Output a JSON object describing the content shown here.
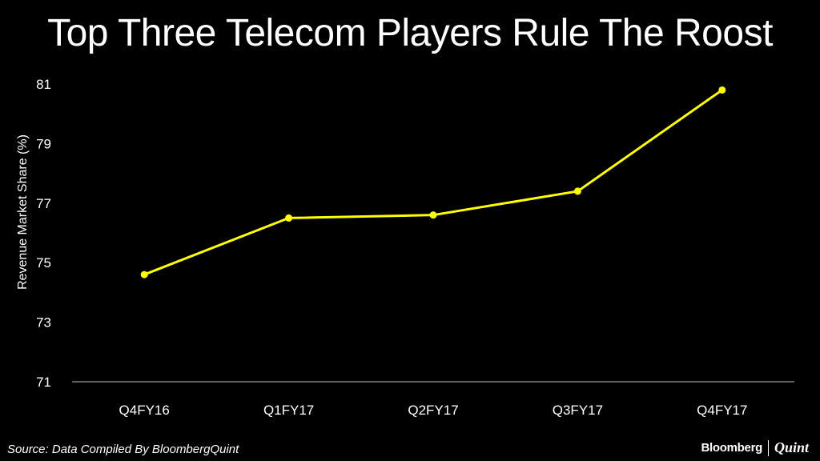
{
  "title": "Top Three Telecom Players Rule The Roost",
  "source": "Source: Data Compiled By BloombergQuint",
  "brand": {
    "primary": "Bloomberg",
    "secondary": "Quint"
  },
  "colors": {
    "background": "#000000",
    "line": "#ffff00",
    "text": "#ffffff"
  },
  "chart_data": {
    "type": "line",
    "categories": [
      "Q4FY16",
      "Q1FY17",
      "Q2FY17",
      "Q3FY17",
      "Q4FY17"
    ],
    "series": [
      {
        "values": [
          74.6,
          76.5,
          76.6,
          77.4,
          80.8
        ]
      }
    ],
    "ylabel": "Revenue Market Share (%)",
    "ylim": [
      71,
      81
    ],
    "yticks": [
      "71",
      "73",
      "75",
      "77",
      "79",
      "81"
    ],
    "grid": false
  }
}
